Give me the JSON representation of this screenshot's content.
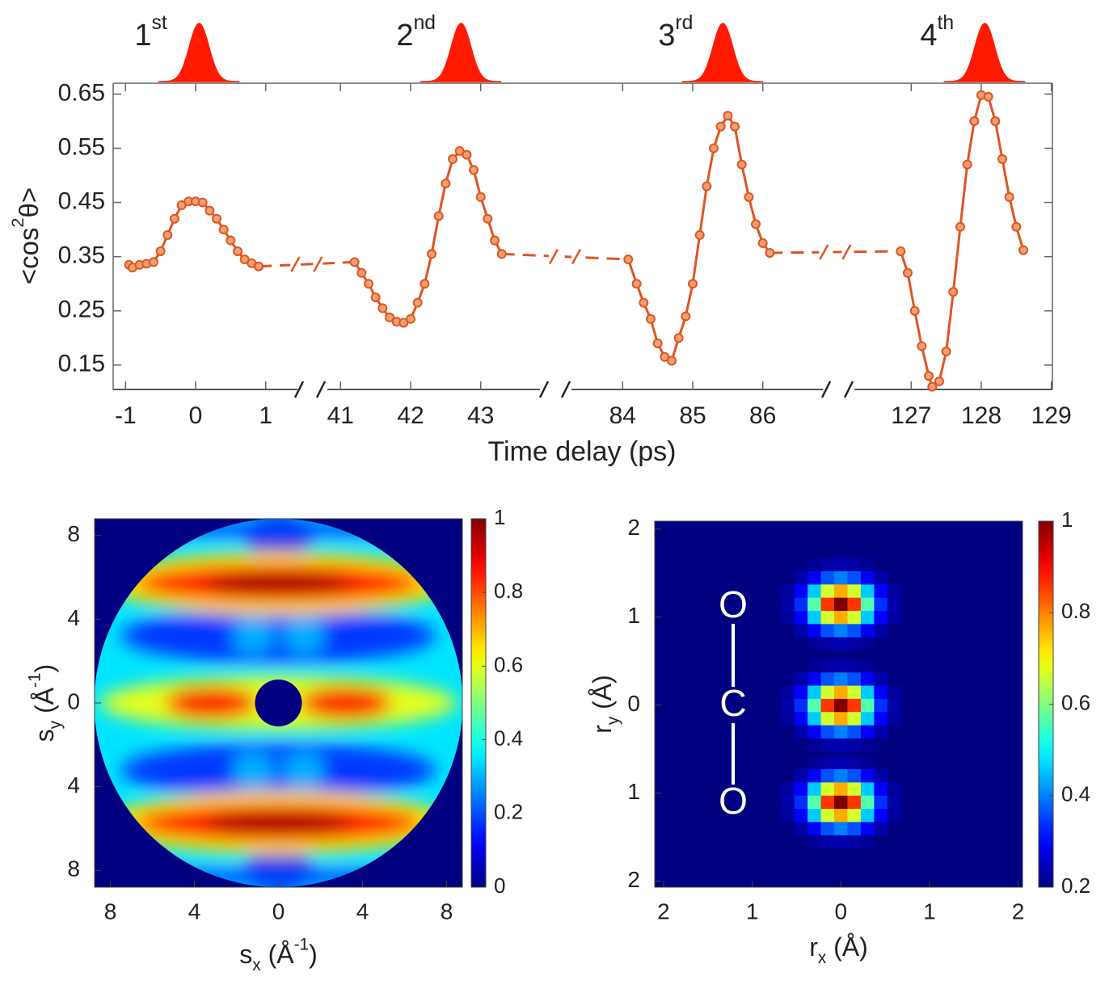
{
  "chart_data": [
    {
      "type": "line",
      "y_label": {
        "text": "<cos",
        "sup": "2",
        "end": "θ>"
      },
      "x_label": "Time delay (ps)",
      "xticks": [
        -1,
        0,
        1,
        41,
        42,
        43,
        84,
        85,
        86,
        127,
        128,
        129
      ],
      "ylim": [
        0.105,
        0.67
      ],
      "yticks": [
        0.15,
        0.25,
        0.35,
        0.45,
        0.55,
        0.65
      ],
      "color": "#dd5522",
      "pulse_color": "#ff1a00",
      "pulses": [
        {
          "label": "1",
          "sup": "st",
          "x": 0.05
        },
        {
          "label": "2",
          "sup": "nd",
          "x": 42.72
        },
        {
          "label": "3",
          "sup": "rd",
          "x": 85.43
        },
        {
          "label": "4",
          "sup": "th",
          "x": 128.05
        }
      ],
      "series": [
        {
          "x": [
            -0.95,
            -0.9,
            -0.8,
            -0.7,
            -0.6,
            -0.5,
            -0.4,
            -0.3,
            -0.2,
            -0.1,
            0,
            0.1,
            0.2,
            0.3,
            0.4,
            0.5,
            0.6,
            0.7,
            0.8,
            0.9
          ],
          "values": [
            0.335,
            0.33,
            0.335,
            0.337,
            0.34,
            0.36,
            0.39,
            0.42,
            0.445,
            0.452,
            0.452,
            0.45,
            0.435,
            0.42,
            0.4,
            0.38,
            0.36,
            0.345,
            0.338,
            0.332
          ]
        },
        {
          "x": [
            41.2,
            41.3,
            41.4,
            41.5,
            41.6,
            41.7,
            41.8,
            41.9,
            42.0,
            42.1,
            42.2,
            42.3,
            42.4,
            42.5,
            42.6,
            42.7,
            42.8,
            42.9,
            43.0,
            43.1,
            43.2,
            43.3
          ],
          "values": [
            0.34,
            0.32,
            0.3,
            0.275,
            0.255,
            0.238,
            0.23,
            0.228,
            0.235,
            0.265,
            0.3,
            0.355,
            0.425,
            0.485,
            0.53,
            0.545,
            0.538,
            0.51,
            0.46,
            0.42,
            0.38,
            0.355
          ]
        },
        {
          "x": [
            84.08,
            84.2,
            84.3,
            84.4,
            84.5,
            84.6,
            84.7,
            84.8,
            84.9,
            85.0,
            85.1,
            85.2,
            85.3,
            85.4,
            85.5,
            85.6,
            85.7,
            85.8,
            85.9,
            86.0,
            86.1
          ],
          "values": [
            0.345,
            0.3,
            0.265,
            0.235,
            0.19,
            0.165,
            0.158,
            0.2,
            0.24,
            0.3,
            0.39,
            0.48,
            0.55,
            0.59,
            0.61,
            0.59,
            0.52,
            0.46,
            0.41,
            0.375,
            0.357
          ]
        },
        {
          "x": [
            126.85,
            126.95,
            127.05,
            127.15,
            127.25,
            127.3,
            127.4,
            127.5,
            127.6,
            127.7,
            127.8,
            127.9,
            128.0,
            128.1,
            128.2,
            128.3,
            128.4,
            128.5,
            128.6
          ],
          "values": [
            0.36,
            0.32,
            0.25,
            0.185,
            0.13,
            0.11,
            0.12,
            0.175,
            0.285,
            0.405,
            0.52,
            0.6,
            0.648,
            0.645,
            0.6,
            0.53,
            0.46,
            0.405,
            0.362
          ]
        }
      ]
    },
    {
      "type": "heatmap",
      "x_label": {
        "text": "s",
        "sub": "x",
        "mid": " (Å",
        "sup": "-1",
        "end": ")"
      },
      "y_label": {
        "text": "s",
        "sub": "y",
        "mid": " (Å",
        "sup": "-1",
        "end": ")"
      },
      "xlim": [
        -8.75,
        8.75
      ],
      "ylim": [
        -8.8,
        8.8
      ],
      "xticks": [
        {
          "value": -8,
          "label": "8"
        },
        {
          "value": -4,
          "label": "4"
        },
        0,
        4,
        8
      ],
      "yticks": [
        {
          "value": -8,
          "label": "8"
        },
        {
          "value": -4,
          "label": "4"
        },
        0,
        4,
        8
      ],
      "colormap": "jet",
      "clim": [
        0,
        1
      ],
      "cticks": [
        0,
        0.2,
        0.4,
        0.6,
        0.8,
        1
      ]
    },
    {
      "type": "heatmap",
      "x_label": {
        "text": "r",
        "sub": "x",
        "end": " (Å)"
      },
      "y_label": {
        "text": "r",
        "sub": "y",
        "end": " (Å)"
      },
      "xlim": [
        -2.1,
        2.05
      ],
      "ylim": [
        -2.07,
        2.09
      ],
      "xticks": [
        {
          "value": -2,
          "label": "2"
        },
        {
          "value": -1,
          "label": "1"
        },
        0,
        1,
        2
      ],
      "yticks": [
        {
          "value": -2,
          "label": "2"
        },
        {
          "value": -1,
          "label": "1"
        },
        0,
        1,
        2
      ],
      "colormap": "jet",
      "clim": [
        0.2,
        1
      ],
      "cticks": [
        0.2,
        0.4,
        0.6,
        0.8,
        1
      ],
      "peaks": [
        {
          "x": 0,
          "y": 1.15,
          "value": 1
        },
        {
          "x": 0,
          "y": 0,
          "value": 1
        },
        {
          "x": 0,
          "y": -1.1,
          "value": 1
        }
      ],
      "atoms": [
        "O",
        "C",
        "O"
      ]
    }
  ]
}
